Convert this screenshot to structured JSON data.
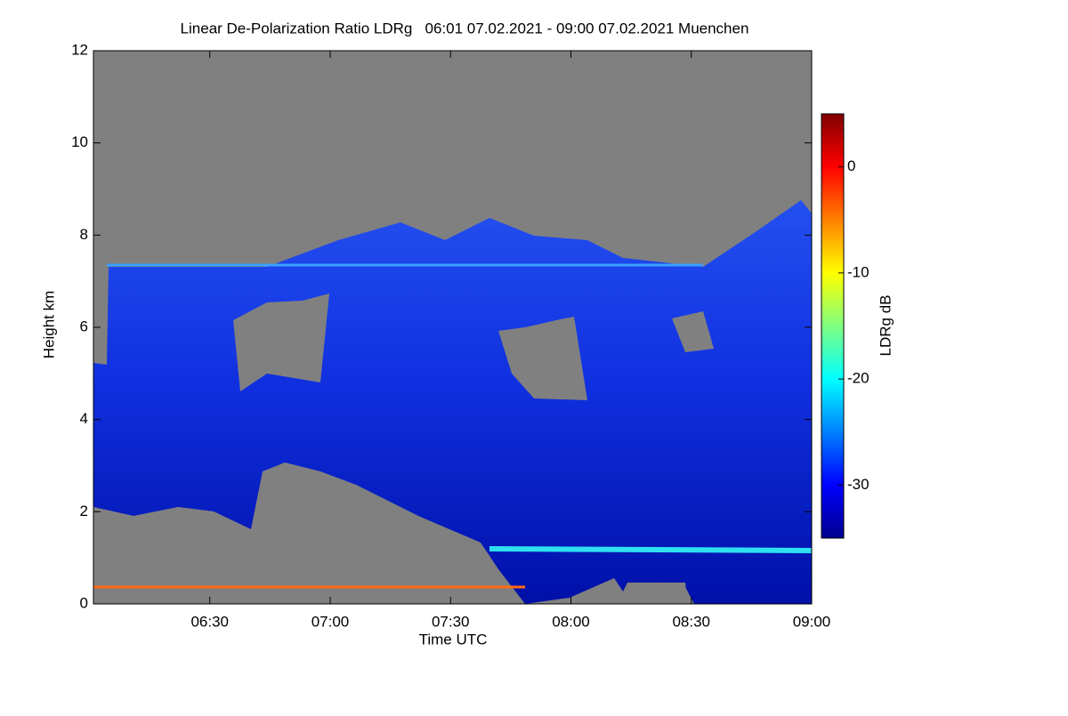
{
  "chart_data": {
    "type": "heatmap",
    "title": "Linear De-Polarization Ratio LDRg   06:01 07.02.2021 - 09:00 07.02.2021 Muenchen",
    "xlabel": "Time UTC",
    "ylabel": "Height km",
    "xlim": [
      6.0167,
      9.0
    ],
    "xticks": [
      {
        "value": 6.5,
        "label": "06:30"
      },
      {
        "value": 7.0,
        "label": "07:00"
      },
      {
        "value": 7.5,
        "label": "07:30"
      },
      {
        "value": 8.0,
        "label": "08:00"
      },
      {
        "value": 8.5,
        "label": "08:30"
      },
      {
        "value": 9.0,
        "label": "09:00"
      }
    ],
    "ylim": [
      0,
      12
    ],
    "yticks": [
      0,
      2,
      4,
      6,
      8,
      10,
      12
    ],
    "colorbar_label": "LDRg dB",
    "colormap": "jet",
    "zlim": [
      -35,
      5
    ],
    "zticks": [
      -30,
      -20,
      -10,
      0
    ]
  }
}
